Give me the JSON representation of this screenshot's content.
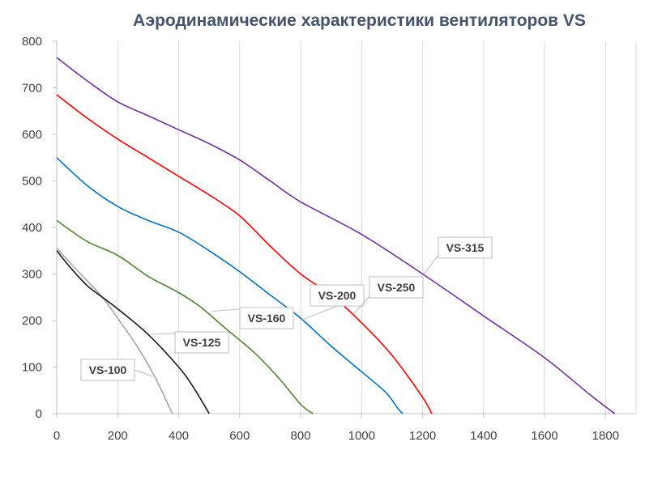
{
  "chart_data": {
    "type": "line",
    "title": "Аэродинамические характеристики вентиляторов VS",
    "xlabel": "",
    "ylabel": "",
    "xlim": [
      0,
      1900
    ],
    "ylim": [
      0,
      800
    ],
    "x_ticks": [
      "0",
      "200",
      "400",
      "600",
      "800",
      "1000",
      "1200",
      "1400",
      "1600",
      "1800"
    ],
    "y_ticks": [
      "0",
      "100",
      "200",
      "300",
      "400",
      "500",
      "600",
      "700",
      "800"
    ],
    "grid": {
      "vertical": true,
      "horizontal": false
    },
    "series": [
      {
        "name": "VS-100",
        "color": "#a6a6a6",
        "points": [
          [
            0,
            355
          ],
          [
            50,
            320
          ],
          [
            100,
            285
          ],
          [
            150,
            250
          ],
          [
            200,
            205
          ],
          [
            250,
            158
          ],
          [
            300,
            105
          ],
          [
            340,
            55
          ],
          [
            365,
            20
          ],
          [
            380,
            0
          ]
        ],
        "label_anchor": [
          315,
          80
        ]
      },
      {
        "name": "VS-125",
        "color": "#1a1a1a",
        "points": [
          [
            0,
            350
          ],
          [
            50,
            310
          ],
          [
            100,
            275
          ],
          [
            150,
            250
          ],
          [
            200,
            225
          ],
          [
            300,
            170
          ],
          [
            400,
            100
          ],
          [
            450,
            55
          ],
          [
            500,
            0
          ]
        ],
        "label_anchor": [
          310,
          170
        ]
      },
      {
        "name": "VS-160",
        "color": "#548235",
        "points": [
          [
            0,
            415
          ],
          [
            100,
            370
          ],
          [
            200,
            340
          ],
          [
            300,
            295
          ],
          [
            400,
            260
          ],
          [
            470,
            230
          ],
          [
            550,
            185
          ],
          [
            650,
            130
          ],
          [
            730,
            75
          ],
          [
            800,
            20
          ],
          [
            840,
            0
          ]
        ],
        "label_anchor": [
          510,
          220
        ]
      },
      {
        "name": "VS-200",
        "color": "#0070c0",
        "points": [
          [
            0,
            550
          ],
          [
            100,
            490
          ],
          [
            200,
            445
          ],
          [
            300,
            415
          ],
          [
            400,
            390
          ],
          [
            500,
            350
          ],
          [
            600,
            305
          ],
          [
            700,
            255
          ],
          [
            800,
            205
          ],
          [
            900,
            145
          ],
          [
            1000,
            90
          ],
          [
            1080,
            45
          ],
          [
            1120,
            10
          ],
          [
            1135,
            0
          ]
        ],
        "label_anchor": [
          800,
          200
        ]
      },
      {
        "name": "VS-250",
        "color": "#ff0000",
        "points": [
          [
            0,
            685
          ],
          [
            100,
            635
          ],
          [
            200,
            590
          ],
          [
            300,
            550
          ],
          [
            400,
            510
          ],
          [
            500,
            470
          ],
          [
            600,
            425
          ],
          [
            700,
            360
          ],
          [
            800,
            300
          ],
          [
            900,
            255
          ],
          [
            1000,
            195
          ],
          [
            1100,
            125
          ],
          [
            1200,
            35
          ],
          [
            1230,
            0
          ]
        ],
        "label_anchor": [
          975,
          215
        ]
      },
      {
        "name": "VS-315",
        "color": "#7030a0",
        "points": [
          [
            0,
            765
          ],
          [
            100,
            715
          ],
          [
            200,
            670
          ],
          [
            300,
            640
          ],
          [
            400,
            610
          ],
          [
            500,
            580
          ],
          [
            600,
            545
          ],
          [
            700,
            500
          ],
          [
            800,
            455
          ],
          [
            1000,
            385
          ],
          [
            1200,
            300
          ],
          [
            1400,
            210
          ],
          [
            1600,
            120
          ],
          [
            1750,
            40
          ],
          [
            1830,
            0
          ]
        ],
        "label_anchor": [
          1205,
          300
        ]
      }
    ],
    "callouts": [
      {
        "text": "VS-100",
        "series": "VS-100"
      },
      {
        "text": "VS-125",
        "series": "VS-125"
      },
      {
        "text": "VS-160",
        "series": "VS-160"
      },
      {
        "text": "VS-200",
        "series": "VS-200"
      },
      {
        "text": "VS-250",
        "series": "VS-250"
      },
      {
        "text": "VS-315",
        "series": "VS-315"
      }
    ]
  }
}
